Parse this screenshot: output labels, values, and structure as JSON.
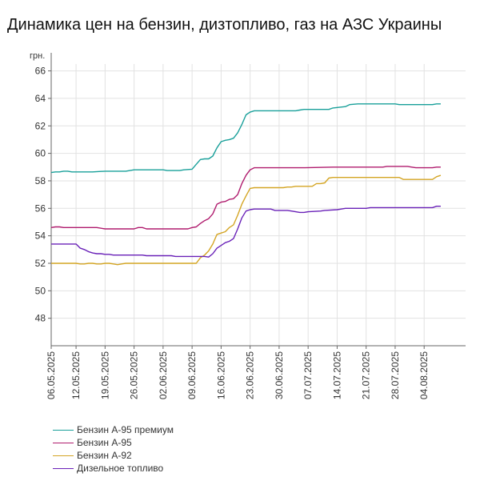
{
  "title": "Динамика цен на бензин, дизтопливо, газ на АЗС Украины",
  "chart_data": {
    "type": "line",
    "ylabel": "грн.",
    "ylim": [
      46,
      66.5
    ],
    "yticks": [
      48,
      50,
      52,
      54,
      56,
      58,
      60,
      62,
      64,
      66
    ],
    "xlim": [
      0,
      100
    ],
    "grid": true,
    "legend_position": "bottom-left",
    "x_tick_labels": [
      {
        "label": "06.05.2025",
        "at": 0
      },
      {
        "label": "12.05.2025",
        "at": 6
      },
      {
        "label": "19.05.2025",
        "at": 13
      },
      {
        "label": "26.05.2025",
        "at": 20
      },
      {
        "label": "02.06.2025",
        "at": 27
      },
      {
        "label": "09.06.2025",
        "at": 34
      },
      {
        "label": "16.06.2025",
        "at": 41
      },
      {
        "label": "23.06.2025",
        "at": 48
      },
      {
        "label": "30.06.2025",
        "at": 55
      },
      {
        "label": "07.07.2025",
        "at": 62
      },
      {
        "label": "14.07.2025",
        "at": 69
      },
      {
        "label": "21.07.2025",
        "at": 76
      },
      {
        "label": "28.07.2025",
        "at": 83
      },
      {
        "label": "04.08.2025",
        "at": 90
      }
    ],
    "series": [
      {
        "name": "Бензин А-95 премиум",
        "color": "#19a09a",
        "points": [
          [
            0,
            58.6
          ],
          [
            1,
            58.65
          ],
          [
            2,
            58.65
          ],
          [
            3,
            58.7
          ],
          [
            4,
            58.7
          ],
          [
            5,
            58.65
          ],
          [
            10,
            58.65
          ],
          [
            13,
            58.7
          ],
          [
            18,
            58.7
          ],
          [
            19,
            58.75
          ],
          [
            20,
            58.8
          ],
          [
            25,
            58.8
          ],
          [
            27,
            58.8
          ],
          [
            28,
            58.75
          ],
          [
            31,
            58.75
          ],
          [
            32,
            58.8
          ],
          [
            34,
            58.85
          ],
          [
            35,
            59.2
          ],
          [
            36,
            59.55
          ],
          [
            37,
            59.6
          ],
          [
            38,
            59.6
          ],
          [
            39,
            59.8
          ],
          [
            40,
            60.4
          ],
          [
            41,
            60.85
          ],
          [
            42,
            60.95
          ],
          [
            43,
            61.0
          ],
          [
            44,
            61.1
          ],
          [
            45,
            61.5
          ],
          [
            46,
            62.1
          ],
          [
            47,
            62.8
          ],
          [
            48,
            63.0
          ],
          [
            49,
            63.1
          ],
          [
            50,
            63.1
          ],
          [
            59,
            63.1
          ],
          [
            60,
            63.15
          ],
          [
            61,
            63.2
          ],
          [
            67,
            63.2
          ],
          [
            68,
            63.3
          ],
          [
            71,
            63.4
          ],
          [
            72,
            63.55
          ],
          [
            74,
            63.6
          ],
          [
            83,
            63.6
          ],
          [
            84,
            63.55
          ],
          [
            92,
            63.55
          ],
          [
            93,
            63.6
          ],
          [
            94,
            63.6
          ]
        ]
      },
      {
        "name": "Бензин А-95",
        "color": "#b01c6e",
        "points": [
          [
            0,
            54.6
          ],
          [
            1,
            54.65
          ],
          [
            2,
            54.65
          ],
          [
            3,
            54.6
          ],
          [
            11,
            54.6
          ],
          [
            13,
            54.5
          ],
          [
            19,
            54.5
          ],
          [
            20,
            54.5
          ],
          [
            21,
            54.6
          ],
          [
            22,
            54.6
          ],
          [
            23,
            54.5
          ],
          [
            33,
            54.5
          ],
          [
            34,
            54.6
          ],
          [
            35,
            54.65
          ],
          [
            36,
            54.9
          ],
          [
            37,
            55.1
          ],
          [
            38,
            55.25
          ],
          [
            39,
            55.6
          ],
          [
            40,
            56.3
          ],
          [
            41,
            56.45
          ],
          [
            42,
            56.5
          ],
          [
            43,
            56.65
          ],
          [
            44,
            56.7
          ],
          [
            45,
            57.0
          ],
          [
            46,
            57.8
          ],
          [
            47,
            58.4
          ],
          [
            48,
            58.8
          ],
          [
            49,
            58.95
          ],
          [
            50,
            58.95
          ],
          [
            59,
            58.95
          ],
          [
            60,
            58.95
          ],
          [
            61,
            58.95
          ],
          [
            68,
            59.0
          ],
          [
            72,
            59.0
          ],
          [
            80,
            59.0
          ],
          [
            81,
            59.05
          ],
          [
            86,
            59.05
          ],
          [
            87,
            59.0
          ],
          [
            88,
            58.95
          ],
          [
            92,
            58.95
          ],
          [
            93,
            59.0
          ],
          [
            94,
            59.0
          ]
        ]
      },
      {
        "name": "Бензин А-92",
        "color": "#d4a524",
        "points": [
          [
            0,
            52.0
          ],
          [
            6,
            52.0
          ],
          [
            7,
            51.95
          ],
          [
            8,
            51.95
          ],
          [
            9,
            52.0
          ],
          [
            10,
            52.0
          ],
          [
            11,
            51.95
          ],
          [
            12,
            51.95
          ],
          [
            13,
            52.0
          ],
          [
            14,
            52.0
          ],
          [
            15,
            51.95
          ],
          [
            16,
            51.9
          ],
          [
            17,
            51.95
          ],
          [
            18,
            52.0
          ],
          [
            19,
            52.0
          ],
          [
            20,
            52.0
          ],
          [
            31,
            52.0
          ],
          [
            32,
            52.0
          ],
          [
            33,
            52.0
          ],
          [
            34,
            52.0
          ],
          [
            35,
            52.0
          ],
          [
            36,
            52.4
          ],
          [
            37,
            52.6
          ],
          [
            38,
            52.9
          ],
          [
            39,
            53.4
          ],
          [
            40,
            54.1
          ],
          [
            41,
            54.2
          ],
          [
            42,
            54.3
          ],
          [
            43,
            54.6
          ],
          [
            44,
            54.8
          ],
          [
            45,
            55.5
          ],
          [
            46,
            56.3
          ],
          [
            47,
            56.9
          ],
          [
            48,
            57.45
          ],
          [
            49,
            57.5
          ],
          [
            50,
            57.5
          ],
          [
            55,
            57.5
          ],
          [
            56,
            57.5
          ],
          [
            57,
            57.55
          ],
          [
            58,
            57.55
          ],
          [
            59,
            57.6
          ],
          [
            63,
            57.6
          ],
          [
            64,
            57.8
          ],
          [
            65,
            57.8
          ],
          [
            66,
            57.85
          ],
          [
            67,
            58.2
          ],
          [
            68,
            58.25
          ],
          [
            83,
            58.25
          ],
          [
            84,
            58.25
          ],
          [
            85,
            58.1
          ],
          [
            86,
            58.1
          ],
          [
            92,
            58.1
          ],
          [
            93,
            58.3
          ],
          [
            94,
            58.4
          ]
        ]
      },
      {
        "name": "Дизельное топливо",
        "color": "#6a22b8",
        "points": [
          [
            0,
            53.4
          ],
          [
            6,
            53.4
          ],
          [
            7,
            53.1
          ],
          [
            8,
            53.0
          ],
          [
            9,
            52.85
          ],
          [
            10,
            52.75
          ],
          [
            11,
            52.7
          ],
          [
            12,
            52.7
          ],
          [
            13,
            52.65
          ],
          [
            14,
            52.65
          ],
          [
            15,
            52.6
          ],
          [
            22,
            52.6
          ],
          [
            23,
            52.55
          ],
          [
            29,
            52.55
          ],
          [
            30,
            52.5
          ],
          [
            37,
            52.5
          ],
          [
            38,
            52.45
          ],
          [
            39,
            52.7
          ],
          [
            40,
            53.1
          ],
          [
            41,
            53.3
          ],
          [
            42,
            53.5
          ],
          [
            43,
            53.6
          ],
          [
            44,
            53.8
          ],
          [
            45,
            54.5
          ],
          [
            46,
            55.3
          ],
          [
            47,
            55.8
          ],
          [
            48,
            55.9
          ],
          [
            49,
            55.95
          ],
          [
            50,
            55.95
          ],
          [
            53,
            55.95
          ],
          [
            54,
            55.85
          ],
          [
            57,
            55.85
          ],
          [
            58,
            55.8
          ],
          [
            59,
            55.75
          ],
          [
            60,
            55.7
          ],
          [
            61,
            55.7
          ],
          [
            62,
            55.75
          ],
          [
            65,
            55.8
          ],
          [
            66,
            55.85
          ],
          [
            69,
            55.9
          ],
          [
            70,
            55.95
          ],
          [
            71,
            56.0
          ],
          [
            76,
            56.0
          ],
          [
            77,
            56.05
          ],
          [
            92,
            56.05
          ],
          [
            93,
            56.15
          ],
          [
            94,
            56.15
          ]
        ]
      }
    ]
  }
}
